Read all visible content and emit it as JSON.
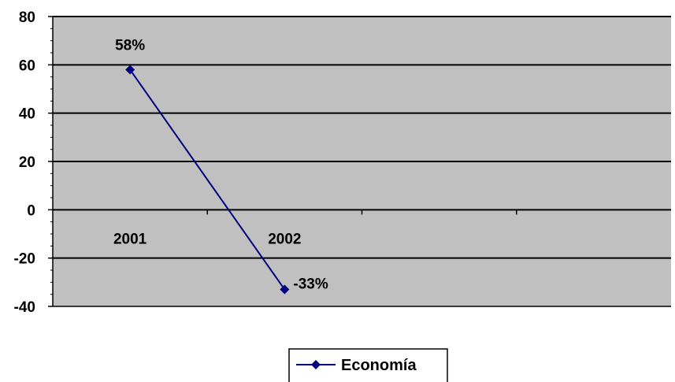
{
  "chart_data": {
    "type": "line",
    "categories": [
      "2001",
      "2002"
    ],
    "series": [
      {
        "name": "Economía",
        "values": [
          58,
          -33
        ],
        "labels": [
          "58%",
          "-33%"
        ],
        "color": "#000080",
        "marker": "diamond"
      }
    ],
    "ylim": [
      -40,
      80
    ],
    "yticks": [
      80,
      60,
      40,
      20,
      0,
      -20,
      -40
    ],
    "ytick_labels": [
      "80",
      "60",
      "40",
      "20",
      "0",
      "-20",
      "-40"
    ],
    "x_slots": 4,
    "grid": true,
    "plot_background": "#c0c0c0",
    "legend_position": "bottom"
  }
}
